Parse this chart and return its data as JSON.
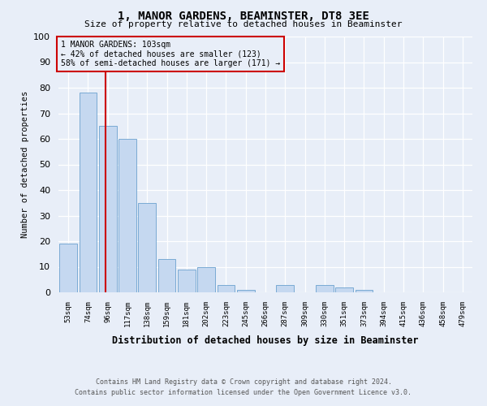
{
  "title": "1, MANOR GARDENS, BEAMINSTER, DT8 3EE",
  "subtitle": "Size of property relative to detached houses in Beaminster",
  "xlabel": "Distribution of detached houses by size in Beaminster",
  "ylabel": "Number of detached properties",
  "footnote1": "Contains HM Land Registry data © Crown copyright and database right 2024.",
  "footnote2": "Contains public sector information licensed under the Open Government Licence v3.0.",
  "annotation_line1": "1 MANOR GARDENS: 103sqm",
  "annotation_line2": "← 42% of detached houses are smaller (123)",
  "annotation_line3": "58% of semi-detached houses are larger (171) →",
  "bar_labels": [
    "53sqm",
    "74sqm",
    "96sqm",
    "117sqm",
    "138sqm",
    "159sqm",
    "181sqm",
    "202sqm",
    "223sqm",
    "245sqm",
    "266sqm",
    "287sqm",
    "309sqm",
    "330sqm",
    "351sqm",
    "373sqm",
    "394sqm",
    "415sqm",
    "436sqm",
    "458sqm",
    "479sqm"
  ],
  "bar_values": [
    19,
    78,
    65,
    60,
    35,
    13,
    9,
    10,
    3,
    1,
    0,
    3,
    0,
    3,
    2,
    1,
    0,
    0,
    0,
    0,
    0
  ],
  "bar_color": "#c5d8f0",
  "bar_edge_color": "#7aaad4",
  "bg_color": "#e8eef8",
  "grid_color": "#ffffff",
  "vline_x": 1.87,
  "vline_color": "#cc0000",
  "annotation_box_edge": "#cc0000",
  "ylim": [
    0,
    100
  ],
  "yticks": [
    0,
    10,
    20,
    30,
    40,
    50,
    60,
    70,
    80,
    90,
    100
  ]
}
